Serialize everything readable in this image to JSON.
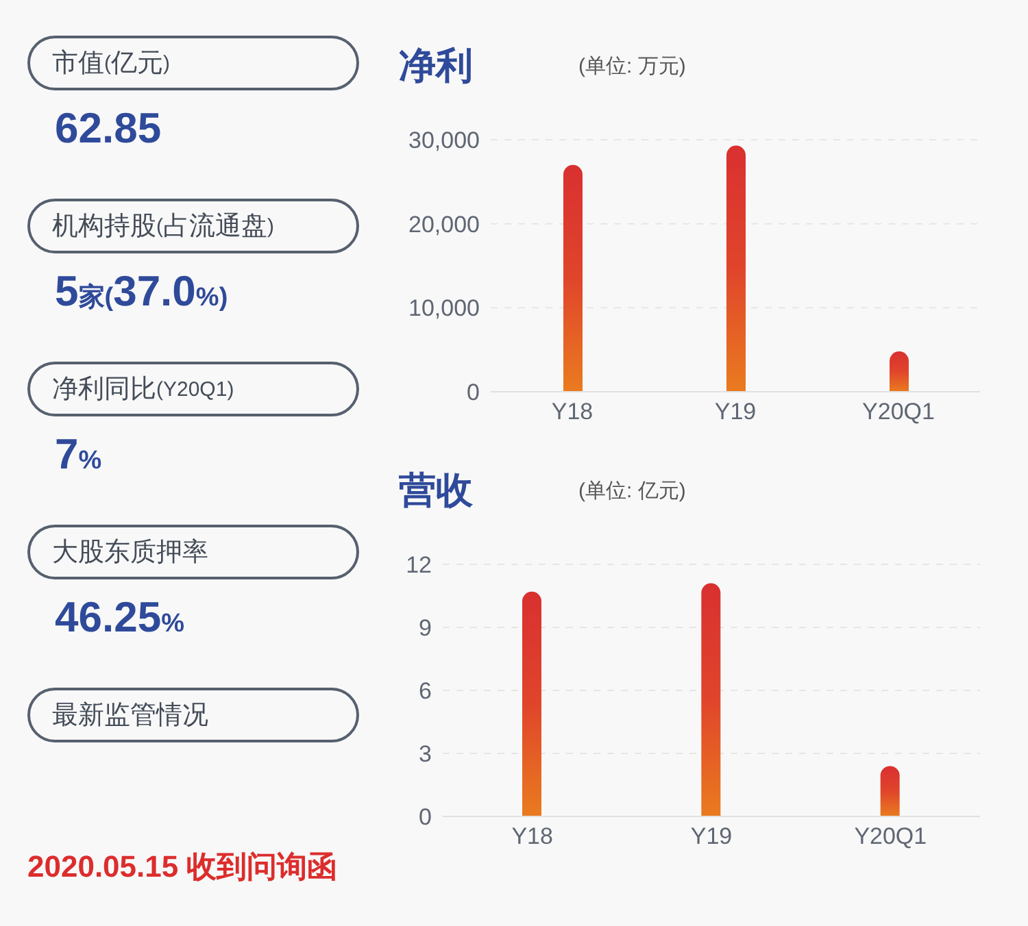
{
  "chart_data": [
    {
      "type": "other",
      "annotations": [
        "市值(亿元)",
        "62.85",
        "机构持股(占流通盘)",
        "5家(37.0%)",
        "净利同比(Y20Q1)",
        "7%",
        "大股东质押率",
        "46.25%",
        "最新监管情况",
        "2020.05.15 收到问询函"
      ]
    },
    {
      "type": "bar",
      "title": "净利",
      "subtitle": "(单位: 万元)",
      "categories": [
        "Y18",
        "Y19",
        "Y20Q1"
      ],
      "values": [
        27000,
        29300,
        4800
      ],
      "color": "#e0452b",
      "ylim": [
        0,
        30000
      ],
      "yticks": [
        0,
        {
          "value": 10000,
          "label": "10,000"
        },
        {
          "value": 20000,
          "label": "20,000"
        },
        {
          "value": 30000,
          "label": "30,000"
        }
      ],
      "grid": "y"
    },
    {
      "type": "bar",
      "title": "营收",
      "subtitle": "(单位: 亿元)",
      "categories": [
        "Y18",
        "Y19",
        "Y20Q1"
      ],
      "values": [
        10.7,
        11.1,
        2.4
      ],
      "color": "#e0452b",
      "ylim": [
        0,
        12
      ],
      "yticks": [
        0,
        3,
        6,
        9,
        12
      ],
      "grid": "y"
    }
  ]
}
